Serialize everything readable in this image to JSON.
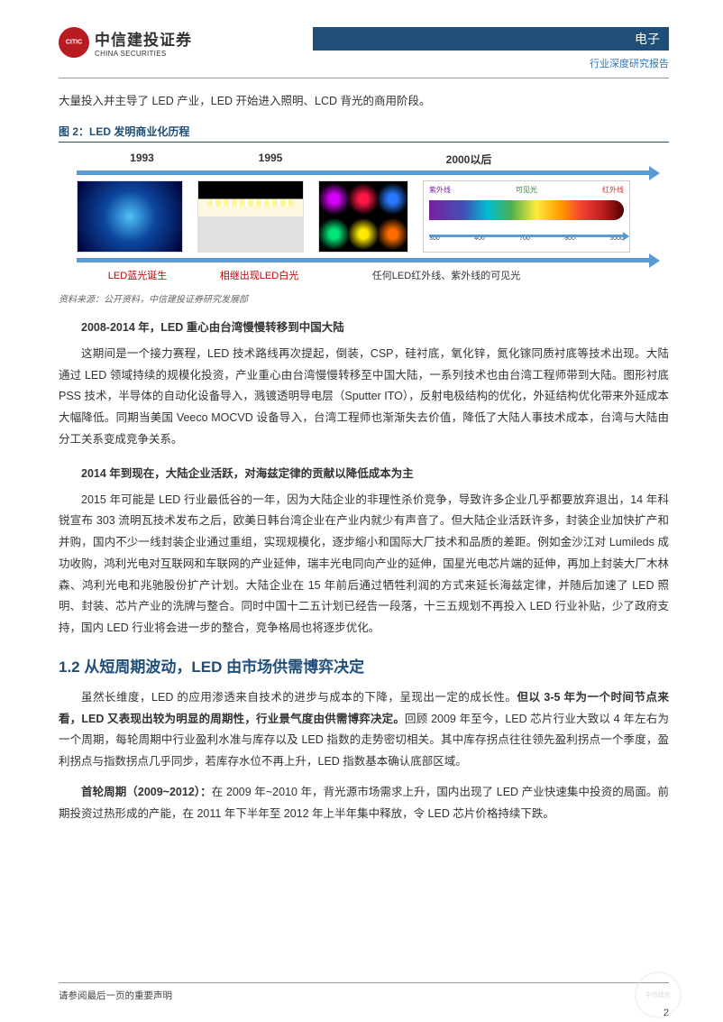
{
  "header": {
    "logo_cn": "中信建投证券",
    "logo_en": "CHINA SECURITIES",
    "category": "电子",
    "subtitle": "行业深度研究报告"
  },
  "intro": "大量投入并主导了 LED 产业，LED 开始进入照明、LCD 背光的商用阶段。",
  "figure": {
    "title": "图 2：LED 发明商业化历程",
    "years": [
      "1993",
      "1995",
      "2000以后"
    ],
    "spectrum_top": [
      "紫外线",
      "可见光",
      "红外线"
    ],
    "spectrum_nums": [
      "300",
      "400",
      "700",
      "800",
      "5000"
    ],
    "labels": [
      "LED蓝光诞生",
      "相继出现LED白光",
      "任何LED红外线、紫外线的可见光"
    ],
    "source": "资料来源：公开资料，中信建投证券研究发展部",
    "timeline_color": "#5b9bd5",
    "label_red": "#c00000"
  },
  "sections": {
    "s1_heading": "2008-2014 年，LED 重心由台湾慢慢转移到中国大陆",
    "s1_p1": "这期间是一个接力赛程，LED 技术路线再次提起，倒装，CSP，硅衬底，氧化锌，氮化镓同质衬底等技术出现。大陆通过 LED 领域持续的规模化投资，产业重心由台湾慢慢转移至中国大陆，一系列技术也由台湾工程师带到大陆。图形衬底 PSS 技术，半导体的自动化设备导入，溅镀透明导电层（Sputter ITO），反射电极结构的优化，外延结构优化带来外延成本大幅降低。同期当美国 Veeco MOCVD 设备导入，台湾工程师也渐渐失去价值，降低了大陆人事技术成本，台湾与大陆由分工关系变成竞争关系。",
    "s2_heading": "2014 年到现在，大陆企业活跃，对海兹定律的贡献以降低成本为主",
    "s2_p1": "2015 年可能是 LED 行业最低谷的一年，因为大陆企业的非理性杀价竞争，导致许多企业几乎都要放弃退出，14 年科锐宣布 303 流明瓦技术发布之后，欧美日韩台湾企业在产业内就少有声音了。但大陆企业活跃许多，封装企业加快扩产和并购，国内不少一线封装企业通过重组，实现规模化，逐步缩小和国际大厂技术和品质的差距。例如金沙江对 Lumileds 成功收购，鸿利光电对互联网和车联网的产业延伸，瑞丰光电同向产业的延伸，国星光电芯片端的延伸，再加上封装大厂木林森、鸿利光电和兆驰股份扩产计划。大陆企业在 15 年前后通过牺牲利润的方式来延长海兹定律，并随后加速了 LED 照明、封装、芯片产业的洗牌与整合。同时中国十二五计划已经告一段落，十三五规划不再投入 LED 行业补贴，少了政府支持，国内 LED 行业将会进一步的整合，竞争格局也将逐步优化。"
  },
  "h2": "1.2 从短周期波动，LED 由市场供需博弈决定",
  "para3_prefix": "虽然长维度，LED 的应用渗透来自技术的进步与成本的下降，呈现出一定的成长性。",
  "para3_bold": "但以 3-5 年为一个时间节点来看，LED 又表现出较为明显的周期性，行业景气度由供需博弈决定。",
  "para3_suffix": "回顾 2009 年至今，LED 芯片行业大致以 4 年左右为一个周期，每轮周期中行业盈利水准与库存以及 LED 指数的走势密切相关。其中库存拐点往往领先盈利拐点一个季度，盈利拐点与指数拐点几乎同步，若库存水位不再上升，LED 指数基本确认底部区域。",
  "para4_bold": "首轮周期（2009~2012）：",
  "para4_rest": "在 2009 年~2010 年，背光源市场需求上升，国内出现了 LED 产业快速集中投资的局面。前期投资过热形成的产能，在 2011 年下半年至 2012 年上半年集中释放，令 LED 芯片价格持续下跌。",
  "footer": {
    "disclaimer": "请参阅最后一页的重要声明",
    "pagenum": "2"
  }
}
